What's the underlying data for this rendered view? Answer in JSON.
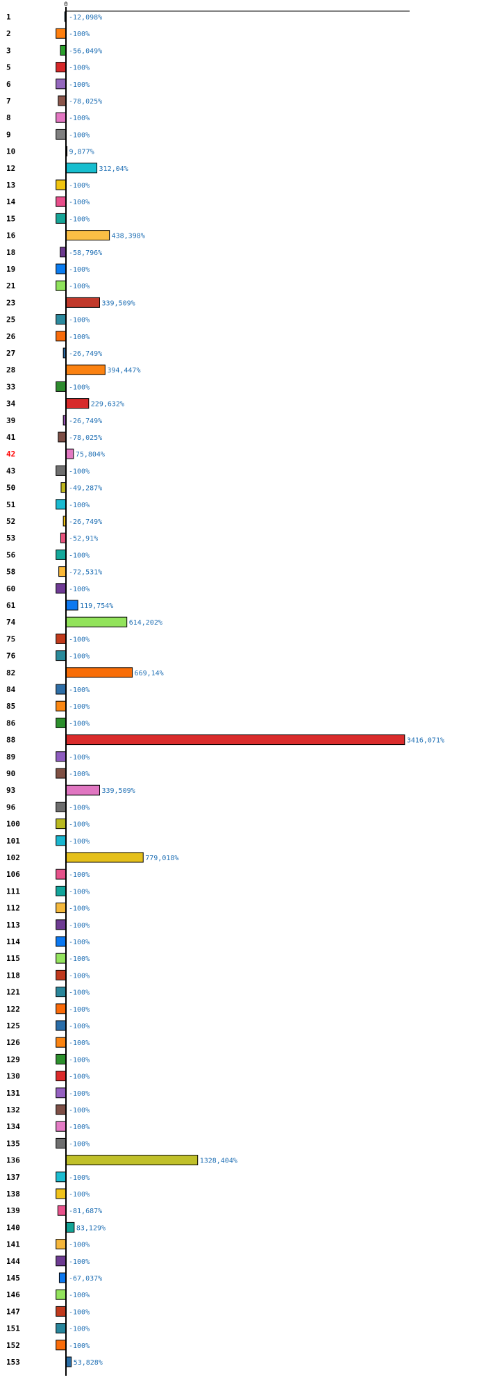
{
  "chart_data": {
    "type": "bar",
    "orientation": "horizontal",
    "zero_label": "0",
    "highlight_category": "42",
    "categories": [
      "1",
      "2",
      "3",
      "5",
      "6",
      "7",
      "8",
      "9",
      "10",
      "12",
      "13",
      "14",
      "15",
      "16",
      "18",
      "19",
      "21",
      "23",
      "25",
      "26",
      "27",
      "28",
      "33",
      "34",
      "39",
      "41",
      "42",
      "43",
      "50",
      "51",
      "52",
      "53",
      "56",
      "58",
      "60",
      "61",
      "74",
      "75",
      "76",
      "82",
      "84",
      "85",
      "86",
      "88",
      "89",
      "90",
      "93",
      "96",
      "100",
      "101",
      "102",
      "106",
      "111",
      "112",
      "113",
      "114",
      "115",
      "118",
      "121",
      "122",
      "125",
      "126",
      "129",
      "130",
      "131",
      "132",
      "134",
      "135",
      "136",
      "137",
      "138",
      "139",
      "140",
      "141",
      "144",
      "145",
      "146",
      "147",
      "151",
      "152",
      "153"
    ],
    "values": [
      -12.098,
      -100,
      -56.049,
      -100,
      -100,
      -78.025,
      -100,
      -100,
      9.877,
      312.04,
      -100,
      -100,
      -100,
      438.398,
      -58.796,
      -100,
      -100,
      339.509,
      -100,
      -100,
      -26.749,
      394.447,
      -100,
      229.632,
      -26.749,
      -78.025,
      75.804,
      -100,
      -49.287,
      -100,
      -26.749,
      -52.91,
      -100,
      -72.531,
      -100,
      119.754,
      614.202,
      -100,
      -100,
      669.14,
      -100,
      -100,
      -100,
      3416.071,
      -100,
      -100,
      339.509,
      -100,
      -100,
      -100,
      779.018,
      -100,
      -100,
      -100,
      -100,
      -100,
      -100,
      -100,
      -100,
      -100,
      -100,
      -100,
      -100,
      -100,
      -100,
      -100,
      -100,
      -100,
      1328.404,
      -100,
      -100,
      -81.687,
      83.129,
      -100,
      -100,
      -67.037,
      -100,
      -100,
      -100,
      -100,
      53.828
    ],
    "labels": [
      "-12,098%",
      "-100%",
      "-56,049%",
      "-100%",
      "-100%",
      "-78,025%",
      "-100%",
      "-100%",
      "9,877%",
      "312,04%",
      "-100%",
      "-100%",
      "-100%",
      "438,398%",
      "-58,796%",
      "-100%",
      "-100%",
      "339,509%",
      "-100%",
      "-100%",
      "-26,749%",
      "394,447%",
      "-100%",
      "229,632%",
      "-26,749%",
      "-78,025%",
      "75,804%",
      "-100%",
      "-49,287%",
      "-100%",
      "-26,749%",
      "-52,91%",
      "-100%",
      "-72,531%",
      "-100%",
      "119,754%",
      "614,202%",
      "-100%",
      "-100%",
      "669,14%",
      "-100%",
      "-100%",
      "-100%",
      "3416,071%",
      "-100%",
      "-100%",
      "339,509%",
      "-100%",
      "-100%",
      "-100%",
      "779,018%",
      "-100%",
      "-100%",
      "-100%",
      "-100%",
      "-100%",
      "-100%",
      "-100%",
      "-100%",
      "-100%",
      "-100%",
      "-100%",
      "-100%",
      "-100%",
      "-100%",
      "-100%",
      "-100%",
      "-100%",
      "1328,404%",
      "-100%",
      "-100%",
      "-81,687%",
      "83,129%",
      "-100%",
      "-100%",
      "-67,037%",
      "-100%",
      "-100%",
      "-100%",
      "-100%",
      "53,828%"
    ],
    "palette": [
      "#1f77b4",
      "#ff7f0e",
      "#2ca02c",
      "#d62728",
      "#9467bd",
      "#8c564b",
      "#e377c2",
      "#7f7f7f",
      "#bcbd22",
      "#17becf",
      "#f1c40f",
      "#e84e8a",
      "#16a597",
      "#fbbf45",
      "#6c3a8e",
      "#0a7cf0",
      "#8fe25c",
      "#c0392b",
      "#2c8a9e",
      "#f86b0a",
      "#2f6ea5",
      "#fb8212",
      "#2e8b2e",
      "#d72a2a",
      "#9b59b6",
      "#7d4e45",
      "#e279c2",
      "#6f6f6f",
      "#c0b820",
      "#1bbad0",
      "#f4c51a",
      "#e8537d",
      "#14a89a",
      "#fbb938",
      "#6f3a94",
      "#0e79f0",
      "#92e35b",
      "#c13a1b",
      "#2a8a9a",
      "#f86d07",
      "#2e6ea6",
      "#fb8712",
      "#2c8f2c",
      "#da2c2c",
      "#8e5cbf",
      "#7f5043",
      "#e076c1",
      "#6d6d6d",
      "#b9b920",
      "#1ab6cf",
      "#e5c01b",
      "#e6528a",
      "#13a59b",
      "#f4b83c",
      "#6e3b92",
      "#0b78f1",
      "#94e45e",
      "#c0391d",
      "#2a869a",
      "#fa6a08",
      "#2a6da8",
      "#fb8412",
      "#2c902c",
      "#dc2a2a",
      "#9560c0",
      "#7e4f46",
      "#e37bc4",
      "#6e6e6e",
      "#c0c02a",
      "#1cbdd1",
      "#f0c21a",
      "#e8528b",
      "#12a496",
      "#f5b63b",
      "#6d3b91",
      "#0d78ef",
      "#93e35c",
      "#c03a1d",
      "#28869c",
      "#fa6c09",
      "#2b6ea6"
    ]
  }
}
